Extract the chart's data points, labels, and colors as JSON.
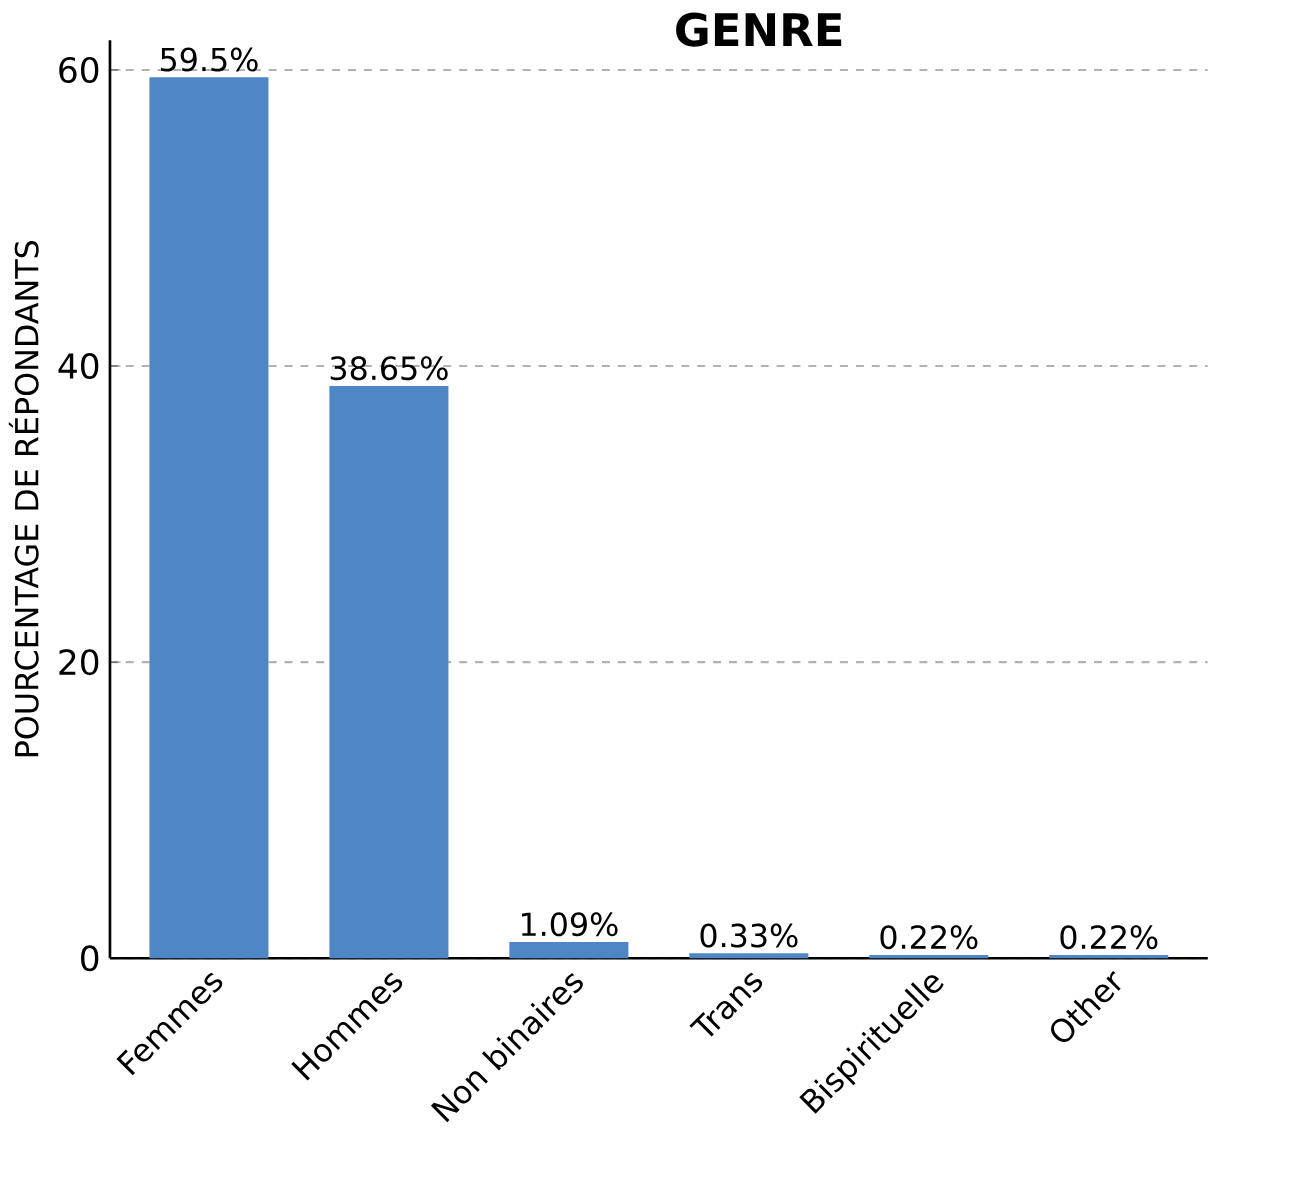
{
  "chart_data": {
    "type": "bar",
    "title": "GENRE",
    "ylabel": "POURCENTAGE DE RÉPONDANTS",
    "categories": [
      "Femmes",
      "Hommes",
      "Non binaires",
      "Trans",
      "Bispirituelle",
      "Other"
    ],
    "values": [
      59.5,
      38.65,
      1.09,
      0.33,
      0.22,
      0.22
    ],
    "value_labels": [
      "59.5%",
      "38.65%",
      "1.09%",
      "0.33%",
      "0.22%",
      "0.22%"
    ],
    "color": "#4f86c6",
    "ylim": [
      0,
      62
    ],
    "yticks": [
      0,
      20,
      40,
      60
    ],
    "grid": "y"
  }
}
